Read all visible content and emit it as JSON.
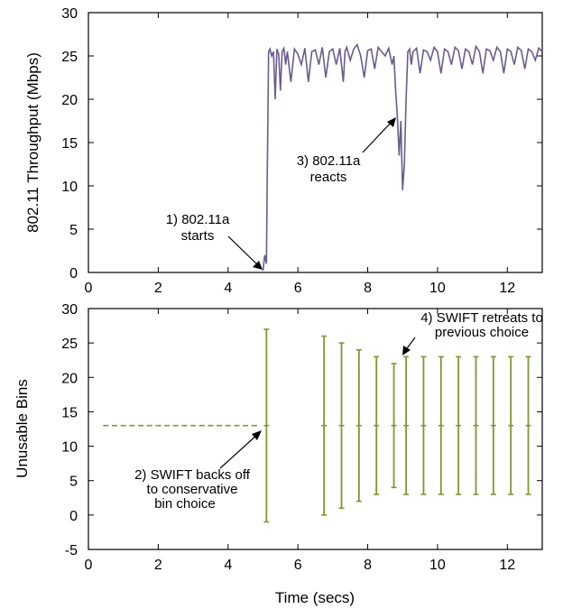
{
  "chart_data": [
    {
      "type": "line",
      "xlabel": "",
      "ylabel": "802.11 Throughput (Mbps)",
      "xlim": [
        0,
        13
      ],
      "ylim": [
        0,
        30
      ],
      "xticks": [
        "0",
        "2",
        "4",
        "6",
        "8",
        "10",
        "12"
      ],
      "yticks": [
        "0",
        "5",
        "10",
        "15",
        "20",
        "25",
        "30"
      ],
      "colors": {
        "line": "#6b5b8e"
      },
      "series": [
        {
          "x": [
            5.0,
            5.05,
            5.1,
            5.12,
            5.16,
            5.2,
            5.25,
            5.3,
            5.35,
            5.4,
            5.45,
            5.5,
            5.55,
            5.6,
            5.65,
            5.7,
            5.8,
            5.9,
            6.0,
            6.1,
            6.2,
            6.3,
            6.4,
            6.5,
            6.6,
            6.7,
            6.8,
            6.9,
            7.0,
            7.1,
            7.2,
            7.3,
            7.35,
            7.4,
            7.5,
            7.6,
            7.7,
            7.8,
            7.9,
            8.0,
            8.1,
            8.2,
            8.3,
            8.4,
            8.5,
            8.6,
            8.7,
            8.75,
            8.8,
            8.85,
            8.9,
            8.95,
            9.0,
            9.05,
            9.1,
            9.15,
            9.2,
            9.25,
            9.3,
            9.4,
            9.5,
            9.6,
            9.7,
            9.8,
            9.9,
            10.0,
            10.1,
            10.2,
            10.3,
            10.4,
            10.5,
            10.6,
            10.7,
            10.8,
            10.9,
            11.0,
            11.1,
            11.2,
            11.3,
            11.4,
            11.5,
            11.6,
            11.7,
            11.8,
            11.9,
            12.0,
            12.1,
            12.2,
            12.3,
            12.4,
            12.5,
            12.6,
            12.7,
            12.8,
            12.9,
            13.0
          ],
          "y": [
            0.2,
            2.0,
            1.0,
            10.0,
            25.5,
            25.8,
            25.0,
            25.5,
            20.0,
            25.8,
            25.2,
            21.0,
            25.5,
            25.9,
            24.0,
            25.5,
            22.0,
            25.8,
            25.2,
            24.0,
            25.9,
            22.0,
            25.5,
            25.7,
            24.0,
            26.0,
            22.5,
            25.5,
            25.8,
            24.0,
            25.9,
            22.0,
            25.5,
            26.0,
            24.5,
            25.8,
            26.3,
            25.0,
            22.5,
            25.6,
            25.8,
            23.5,
            26.0,
            25.5,
            25.0,
            25.9,
            24.0,
            25.0,
            21.0,
            18.0,
            13.5,
            17.5,
            9.5,
            12.5,
            20.0,
            25.5,
            25.8,
            24.0,
            25.5,
            25.9,
            23.0,
            25.7,
            25.5,
            24.5,
            26.0,
            25.5,
            23.0,
            25.8,
            25.5,
            24.0,
            26.0,
            25.6,
            23.5,
            25.8,
            25.5,
            24.0,
            26.1,
            25.5,
            23.0,
            25.8,
            25.6,
            24.5,
            26.0,
            25.5,
            23.0,
            25.8,
            25.5,
            24.0,
            26.0,
            25.6,
            23.5,
            25.8,
            25.5,
            24.5,
            25.9,
            25.5
          ]
        }
      ],
      "annotations": [
        {
          "lines": [
            "1) 802.11a",
            "starts"
          ]
        },
        {
          "lines": [
            "3) 802.11a",
            "reacts"
          ]
        }
      ]
    },
    {
      "type": "scatter",
      "xlabel": "Time (secs)",
      "ylabel": "Unusable Bins",
      "xlim": [
        0,
        13
      ],
      "ylim": [
        -5,
        30
      ],
      "xticks": [
        "0",
        "2",
        "4",
        "6",
        "8",
        "10",
        "12"
      ],
      "yticks": [
        "-5",
        "0",
        "5",
        "10",
        "15",
        "20",
        "25",
        "30"
      ],
      "colors": {
        "marks": "#7a9a2e"
      },
      "points": {
        "x": [
          0.5,
          0.75,
          1.0,
          1.25,
          1.5,
          1.75,
          2.0,
          2.25,
          2.5,
          2.75,
          3.0,
          3.25,
          3.5,
          3.75,
          4.0,
          4.25,
          4.5,
          4.75
        ],
        "y": [
          13,
          13,
          13,
          13,
          13,
          13,
          13,
          13,
          13,
          13,
          13,
          13,
          13,
          13,
          13,
          13,
          13,
          13
        ]
      },
      "errorbars": [
        {
          "x": 5.1,
          "center": 13,
          "low": -1,
          "high": 27
        },
        {
          "x": 6.75,
          "center": 13,
          "low": 0,
          "high": 26
        },
        {
          "x": 7.25,
          "center": 13,
          "low": 1,
          "high": 25
        },
        {
          "x": 7.75,
          "center": 13,
          "low": 2,
          "high": 24
        },
        {
          "x": 8.25,
          "center": 13,
          "low": 3,
          "high": 23
        },
        {
          "x": 8.75,
          "center": 13,
          "low": 4,
          "high": 22
        },
        {
          "x": 9.1,
          "center": 13,
          "low": 3,
          "high": 23
        },
        {
          "x": 9.6,
          "center": 13,
          "low": 3,
          "high": 23
        },
        {
          "x": 10.1,
          "center": 13,
          "low": 3,
          "high": 23
        },
        {
          "x": 10.6,
          "center": 13,
          "low": 3,
          "high": 23
        },
        {
          "x": 11.1,
          "center": 13,
          "low": 3,
          "high": 23
        },
        {
          "x": 11.6,
          "center": 13,
          "low": 3,
          "high": 23
        },
        {
          "x": 12.1,
          "center": 13,
          "low": 3,
          "high": 23
        },
        {
          "x": 12.6,
          "center": 13,
          "low": 3,
          "high": 23
        }
      ],
      "annotations": [
        {
          "lines": [
            "2) SWIFT backs off",
            "to conservative",
            "bin choice"
          ]
        },
        {
          "lines": [
            "4) SWIFT retreats to",
            "previous choice"
          ]
        }
      ]
    }
  ]
}
